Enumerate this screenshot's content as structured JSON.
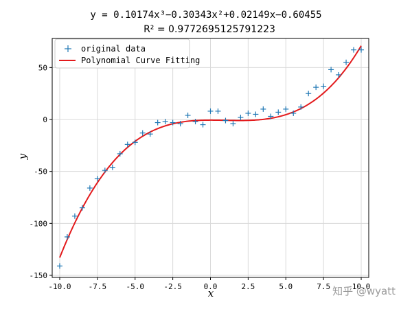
{
  "watermark": "知乎 @wyatt",
  "chart_data": {
    "type": "scatter",
    "title_line1": "y = 0.10174x³−0.30343x²+0.02149x−0.60455",
    "title_line2": "R² = 0.9772695125791223",
    "xlabel": "x",
    "ylabel": "y",
    "xlim": [
      -10.5,
      10.5
    ],
    "ylim": [
      -152,
      78
    ],
    "grid": true,
    "legend_position": "top-left",
    "xticks": [
      -10.0,
      -7.5,
      -5.0,
      -2.5,
      0.0,
      2.5,
      5.0,
      7.5,
      10.0
    ],
    "xtick_labels": [
      "-10.0",
      "-7.5",
      "-5.0",
      "-2.5",
      "0.0",
      "2.5",
      "5.0",
      "7.5",
      "10.0"
    ],
    "yticks": [
      -150,
      -100,
      -50,
      0,
      50
    ],
    "ytick_labels": [
      "-150",
      "-100",
      "-50",
      "0",
      "50"
    ],
    "series": [
      {
        "name": "original data",
        "kind": "scatter",
        "marker": "+",
        "color": "#1f77b4",
        "x": [
          -10.0,
          -9.5,
          -9.0,
          -8.5,
          -8.0,
          -7.5,
          -7.0,
          -6.5,
          -6.0,
          -5.5,
          -5.0,
          -4.5,
          -4.0,
          -3.5,
          -3.0,
          -2.5,
          -2.0,
          -1.5,
          -1.0,
          -0.5,
          0.0,
          0.5,
          1.0,
          1.5,
          2.0,
          2.5,
          3.0,
          3.5,
          4.0,
          4.5,
          5.0,
          5.5,
          6.0,
          6.5,
          7.0,
          7.5,
          8.0,
          8.5,
          9.0,
          9.5,
          10.0
        ],
        "y": [
          -141,
          -113,
          -93,
          -85,
          -66,
          -57,
          -49,
          -46,
          -33,
          -24,
          -22,
          -13,
          -14,
          -3,
          -2,
          -3,
          -4,
          4,
          -2,
          -5,
          8,
          8,
          -1,
          -4,
          2,
          6,
          5,
          10,
          3,
          7,
          10,
          6,
          12,
          25,
          31,
          32,
          48,
          43,
          55,
          67,
          67
        ]
      },
      {
        "name": "Polynomial Curve Fitting",
        "kind": "line",
        "color": "#e31a1c",
        "coefficients": [
          0.10174,
          -0.30343,
          0.02149,
          -0.60455
        ]
      }
    ]
  }
}
